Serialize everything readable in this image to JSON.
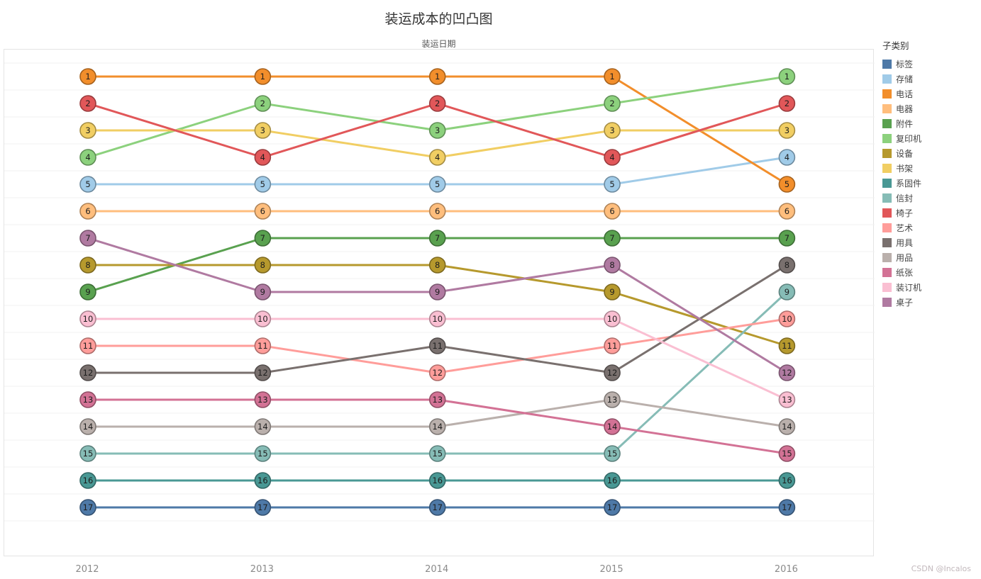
{
  "title": "装运成本的凹凸图",
  "subtitle": "装运日期",
  "watermark": "CSDN @Incalos",
  "legend": {
    "title": "子类别"
  },
  "chart_data": {
    "type": "line",
    "subtype": "bump-chart",
    "title": "装运成本的凹凸图",
    "xlabel": "装运日期",
    "legend_title": "子类别",
    "legend_position": "right",
    "grid": "horizontal-faint",
    "x": [
      "2012",
      "2013",
      "2014",
      "2015",
      "2016"
    ],
    "y_is_rank": true,
    "ylim": [
      1,
      17
    ],
    "marker_label": "rank",
    "series": [
      {
        "name": "标签",
        "color": "#4e79a7",
        "ranks": [
          17,
          17,
          17,
          17,
          17
        ]
      },
      {
        "name": "存储",
        "color": "#a0cbe8",
        "ranks": [
          5,
          5,
          5,
          5,
          4
        ]
      },
      {
        "name": "电话",
        "color": "#f28e2b",
        "ranks": [
          1,
          1,
          1,
          1,
          5
        ]
      },
      {
        "name": "电器",
        "color": "#ffbe7d",
        "ranks": [
          6,
          6,
          6,
          6,
          6
        ]
      },
      {
        "name": "附件",
        "color": "#59a14f",
        "ranks": [
          9,
          7,
          7,
          7,
          7
        ]
      },
      {
        "name": "复印机",
        "color": "#8cd17d",
        "ranks": [
          4,
          2,
          3,
          2,
          1
        ]
      },
      {
        "name": "设备",
        "color": "#b6992d",
        "ranks": [
          8,
          8,
          8,
          9,
          11
        ]
      },
      {
        "name": "书架",
        "color": "#f1ce63",
        "ranks": [
          3,
          3,
          4,
          3,
          3
        ]
      },
      {
        "name": "系固件",
        "color": "#499894",
        "ranks": [
          16,
          16,
          16,
          16,
          16
        ]
      },
      {
        "name": "信封",
        "color": "#86bcb6",
        "ranks": [
          15,
          15,
          15,
          15,
          9
        ]
      },
      {
        "name": "椅子",
        "color": "#e15759",
        "ranks": [
          2,
          4,
          2,
          4,
          2
        ]
      },
      {
        "name": "艺术",
        "color": "#ff9d9a",
        "ranks": [
          11,
          11,
          12,
          11,
          10
        ]
      },
      {
        "name": "用具",
        "color": "#79706e",
        "ranks": [
          12,
          12,
          11,
          12,
          8
        ]
      },
      {
        "name": "用品",
        "color": "#bab0ac",
        "ranks": [
          14,
          14,
          14,
          13,
          14
        ]
      },
      {
        "name": "纸张",
        "color": "#d37295",
        "ranks": [
          13,
          13,
          13,
          14,
          15
        ]
      },
      {
        "name": "装订机",
        "color": "#fabfd2",
        "ranks": [
          10,
          10,
          10,
          10,
          13
        ]
      },
      {
        "name": "桌子",
        "color": "#b07aa1",
        "ranks": [
          7,
          9,
          9,
          8,
          12
        ]
      }
    ]
  }
}
